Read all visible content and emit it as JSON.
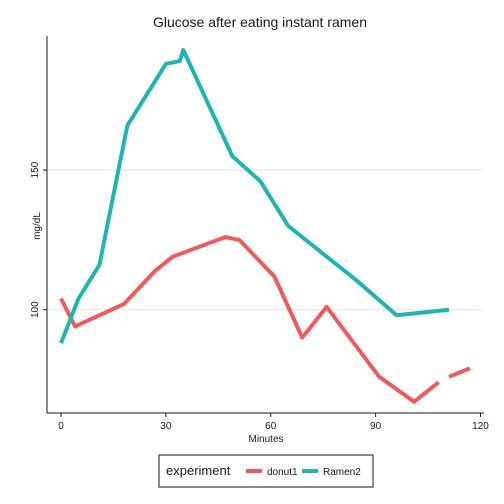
{
  "chart_data": {
    "type": "line",
    "title": "Glucose after eating instant ramen",
    "xlabel": "Minutes",
    "ylabel": "mg/dL",
    "xlim": [
      -4,
      121
    ],
    "ylim": [
      63,
      198
    ],
    "xticks": [
      0,
      30,
      60,
      90,
      120
    ],
    "xtick_labels": [
      "0",
      "30",
      "60",
      "90",
      "120"
    ],
    "yticks": [
      100,
      150
    ],
    "ytick_labels": [
      "100",
      "150"
    ],
    "grid": true,
    "legend": {
      "title": "experiment",
      "position": "bottom"
    },
    "series": [
      {
        "name": "donut1",
        "color": "#ef5b5b",
        "segments": [
          [
            [
              0,
              104
            ],
            [
              4,
              94
            ],
            [
              18,
              102
            ],
            [
              27,
              114
            ],
            [
              32,
              119
            ],
            [
              47,
              126
            ],
            [
              51,
              125
            ],
            [
              61,
              112
            ],
            [
              69,
              90
            ],
            [
              76,
              101
            ],
            [
              91,
              76
            ],
            [
              101,
              67
            ],
            [
              108,
              74
            ]
          ],
          [
            [
              111,
              76
            ],
            [
              117,
              79
            ]
          ]
        ]
      },
      {
        "name": "Ramen2",
        "color": "#20b5b5",
        "segments": [
          [
            [
              0,
              88
            ],
            [
              5,
              104
            ],
            [
              11,
              116
            ],
            [
              19,
              166
            ],
            [
              30,
              188
            ],
            [
              34,
              189
            ],
            [
              35,
              193
            ],
            [
              49,
              155
            ],
            [
              57,
              146
            ],
            [
              65,
              130
            ],
            [
              85,
              110
            ],
            [
              96,
              98
            ],
            [
              111,
              100
            ]
          ]
        ]
      }
    ]
  }
}
